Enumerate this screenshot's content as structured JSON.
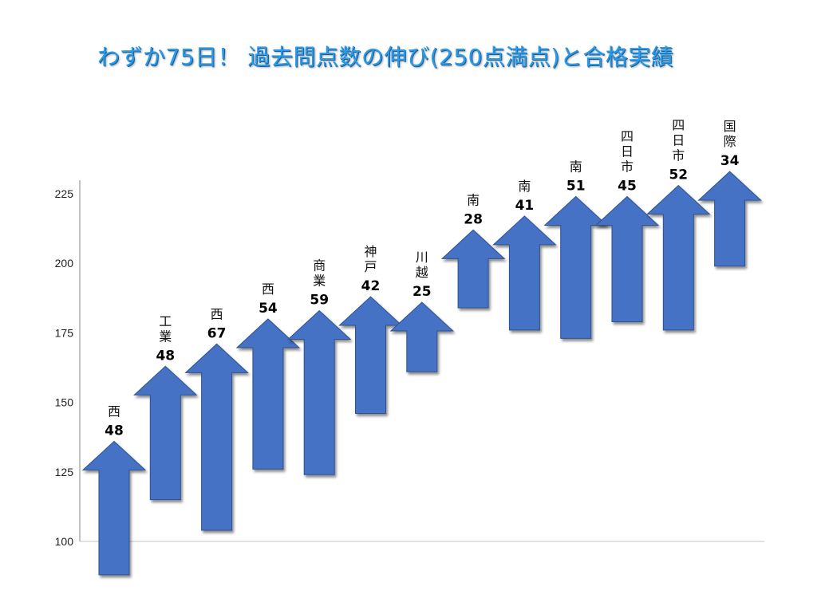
{
  "title": "わずか75日！ 過去問点数の伸び(250点満点)と合格実績",
  "chart_data": {
    "type": "bar",
    "style": "floating-arrows",
    "title": "わずか75日！ 過去問点数の伸び(250点満点)と合格実績",
    "xlabel": "",
    "ylabel": "",
    "ylim": [
      100,
      225
    ],
    "yticks": [
      "100",
      "125",
      "150",
      "175",
      "200",
      "225"
    ],
    "grid": false,
    "legend": "none",
    "color": "#4472c4",
    "items": [
      {
        "school": "西",
        "gain": "48",
        "start": 88,
        "end": 136
      },
      {
        "school": "工業",
        "gain": "48",
        "start": 115,
        "end": 163
      },
      {
        "school": "西",
        "gain": "67",
        "start": 104,
        "end": 171
      },
      {
        "school": "西",
        "gain": "54",
        "start": 126,
        "end": 180
      },
      {
        "school": "商業",
        "gain": "59",
        "start": 124,
        "end": 183
      },
      {
        "school": "神戸",
        "gain": "42",
        "start": 146,
        "end": 188
      },
      {
        "school": "川越",
        "gain": "25",
        "start": 161,
        "end": 186
      },
      {
        "school": "南",
        "gain": "28",
        "start": 184,
        "end": 212
      },
      {
        "school": "南",
        "gain": "41",
        "start": 176,
        "end": 217
      },
      {
        "school": "南",
        "gain": "51",
        "start": 173,
        "end": 224
      },
      {
        "school": "四日市",
        "gain": "45",
        "start": 179,
        "end": 224
      },
      {
        "school": "四日市",
        "gain": "52",
        "start": 176,
        "end": 228
      },
      {
        "school": "国際",
        "gain": "34",
        "start": 199,
        "end": 233
      }
    ]
  }
}
